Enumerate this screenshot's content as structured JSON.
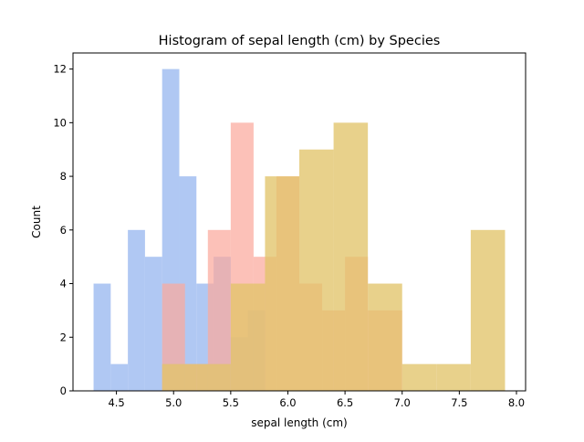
{
  "chart_data": {
    "type": "bar",
    "title": "Histogram of sepal length (cm) by Species",
    "xlabel": "sepal length (cm)",
    "ylabel": "Count",
    "xlim": [
      4.12,
      8.08
    ],
    "ylim": [
      0,
      12.6
    ],
    "x_ticks": [
      4.5,
      5.0,
      5.5,
      6.0,
      6.5,
      7.0,
      7.5,
      8.0
    ],
    "x_tick_labels": [
      "4.5",
      "5.0",
      "5.5",
      "6.0",
      "6.5",
      "7.0",
      "7.5",
      "8.0"
    ],
    "y_ticks": [
      0,
      2,
      4,
      6,
      8,
      10,
      12
    ],
    "y_tick_labels": [
      "0",
      "2",
      "4",
      "6",
      "8",
      "10",
      "12"
    ],
    "grid": false,
    "series": [
      {
        "color": "#9ab8f0",
        "opacity": 0.78,
        "bin_edges": [
          4.3,
          4.45,
          4.6,
          4.75,
          4.9,
          5.05,
          5.2,
          5.35,
          5.5,
          5.65,
          5.8
        ],
        "counts": [
          4,
          1,
          6,
          5,
          12,
          8,
          4,
          5,
          2,
          3
        ]
      },
      {
        "color": "#fba99d",
        "opacity": 0.72,
        "bin_edges": [
          4.9,
          5.1,
          5.3,
          5.5,
          5.7,
          5.9,
          6.1,
          6.3,
          6.5,
          6.7,
          7.0
        ],
        "counts": [
          4,
          1,
          6,
          10,
          5,
          8,
          4,
          3,
          5,
          3
        ]
      },
      {
        "color": "#e2c46a",
        "opacity": 0.78,
        "bin_edges": [
          4.9,
          5.2,
          5.5,
          5.8,
          6.1,
          6.4,
          6.7,
          7.0,
          7.3,
          7.6,
          7.9
        ],
        "counts": [
          1,
          1,
          4,
          8,
          9,
          10,
          4,
          1,
          1,
          6
        ]
      }
    ]
  }
}
